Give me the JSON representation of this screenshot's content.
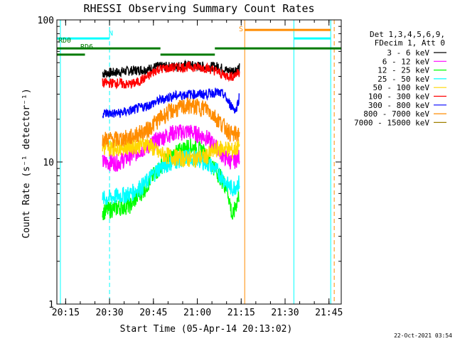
{
  "chart_data": {
    "type": "line",
    "title": "RHESSI Observing Summary Count Rates",
    "xlabel": "Start Time (05-Apr-14 20:13:02)",
    "ylabel": "Count Rate (s⁻¹ detector⁻¹)",
    "y_log": true,
    "xlim_minutes": [
      20.2,
      21.82
    ],
    "ylim": [
      1,
      100
    ],
    "x_ticks": [
      "20:15",
      "20:30",
      "20:45",
      "21:00",
      "21:15",
      "21:30",
      "21:45"
    ],
    "y_ticks": [
      "1",
      "10",
      "100"
    ],
    "timestamp": "22-Oct-2021 03:54",
    "legend_header": [
      "Det 1,3,4,5,6,9,",
      "FDecim 1, Att 0"
    ],
    "legend_placement": "right",
    "series": [
      {
        "name": "3 - 6 keV",
        "color": "#000000",
        "points": [
          [
            20.46,
            42
          ],
          [
            20.55,
            43
          ],
          [
            20.62,
            44
          ],
          [
            20.72,
            45
          ],
          [
            20.77,
            47
          ],
          [
            20.85,
            47
          ],
          [
            20.95,
            48
          ],
          [
            21.05,
            47
          ],
          [
            21.12,
            47
          ],
          [
            21.17,
            44
          ],
          [
            21.2,
            44
          ],
          [
            21.24,
            46
          ]
        ]
      },
      {
        "name": "6 - 12 keV",
        "color": "#ff00ff",
        "points": [
          [
            20.46,
            10
          ],
          [
            20.55,
            10
          ],
          [
            20.62,
            11
          ],
          [
            20.72,
            13
          ],
          [
            20.78,
            14.5
          ],
          [
            20.85,
            16
          ],
          [
            20.95,
            16.5
          ],
          [
            21.05,
            15
          ],
          [
            21.1,
            13
          ],
          [
            21.15,
            11
          ],
          [
            21.2,
            10
          ],
          [
            21.24,
            11
          ]
        ]
      },
      {
        "name": "12 - 25 keV",
        "color": "#00ff00",
        "points": [
          [
            20.46,
            4.5
          ],
          [
            20.55,
            4.8
          ],
          [
            20.62,
            5
          ],
          [
            20.7,
            6.5
          ],
          [
            20.78,
            9
          ],
          [
            20.85,
            11
          ],
          [
            20.95,
            13
          ],
          [
            21.03,
            12
          ],
          [
            21.1,
            9
          ],
          [
            21.17,
            6.5
          ],
          [
            21.2,
            4
          ],
          [
            21.24,
            6
          ]
        ]
      },
      {
        "name": "25 - 50 keV",
        "color": "#00ffff",
        "points": [
          [
            20.46,
            5.5
          ],
          [
            20.55,
            5.8
          ],
          [
            20.62,
            6
          ],
          [
            20.7,
            7
          ],
          [
            20.78,
            9
          ],
          [
            20.85,
            10
          ],
          [
            20.95,
            11
          ],
          [
            21.05,
            10
          ],
          [
            21.12,
            8.5
          ],
          [
            21.17,
            7
          ],
          [
            21.2,
            6.5
          ],
          [
            21.24,
            7.2
          ]
        ]
      },
      {
        "name": "50 - 100 keV",
        "color": "#ffd700",
        "points": [
          [
            20.46,
            12.5
          ],
          [
            20.55,
            12.8
          ],
          [
            20.62,
            13
          ],
          [
            20.72,
            13.5
          ],
          [
            20.78,
            11.5
          ],
          [
            20.85,
            11
          ],
          [
            20.95,
            10.5
          ],
          [
            21.05,
            11
          ],
          [
            21.12,
            12.5
          ],
          [
            21.17,
            12.5
          ],
          [
            21.2,
            12
          ],
          [
            21.24,
            13
          ]
        ]
      },
      {
        "name": "100 - 300 keV",
        "color": "#ff0000",
        "points": [
          [
            20.46,
            36
          ],
          [
            20.55,
            36
          ],
          [
            20.6,
            35
          ],
          [
            20.65,
            36
          ],
          [
            20.72,
            40
          ],
          [
            20.77,
            45
          ],
          [
            20.85,
            46
          ],
          [
            20.95,
            47
          ],
          [
            21.05,
            46
          ],
          [
            21.1,
            44
          ],
          [
            21.15,
            41
          ],
          [
            21.2,
            40
          ],
          [
            21.24,
            43
          ]
        ]
      },
      {
        "name": "300 - 800 keV",
        "color": "#0000ff",
        "points": [
          [
            20.46,
            22
          ],
          [
            20.55,
            22
          ],
          [
            20.62,
            23
          ],
          [
            20.72,
            25
          ],
          [
            20.78,
            27
          ],
          [
            20.85,
            29
          ],
          [
            20.95,
            30
          ],
          [
            21.05,
            30
          ],
          [
            21.1,
            31
          ],
          [
            21.15,
            30
          ],
          [
            21.18,
            26
          ],
          [
            21.22,
            23
          ],
          [
            21.24,
            29
          ]
        ]
      },
      {
        "name": "800 - 7000 keV",
        "color": "#ff8c00",
        "points": [
          [
            20.46,
            14.5
          ],
          [
            20.55,
            14.5
          ],
          [
            20.62,
            15
          ],
          [
            20.72,
            17
          ],
          [
            20.78,
            20
          ],
          [
            20.85,
            23
          ],
          [
            20.95,
            25
          ],
          [
            21.05,
            24
          ],
          [
            21.1,
            21
          ],
          [
            21.15,
            18
          ],
          [
            21.2,
            15.5
          ],
          [
            21.24,
            16
          ]
        ]
      },
      {
        "name": "7000 - 15000 keV",
        "color": "#a08000",
        "points": []
      }
    ],
    "bars": [
      {
        "label": "RD0",
        "color": "#007a00",
        "y": 63,
        "segments": [
          [
            20.2,
            20.79
          ],
          [
            21.1,
            21.82
          ]
        ]
      },
      {
        "label": "RD6",
        "color": "#007a00",
        "y": 57,
        "segments": [
          [
            20.2,
            20.36
          ],
          [
            20.79,
            21.1
          ]
        ]
      },
      {
        "label": "N",
        "color": "#00ffff",
        "y": 74,
        "segments": [
          [
            20.2,
            20.5
          ],
          [
            21.55,
            21.76
          ]
        ]
      },
      {
        "label": "S",
        "color": "#ff8c00",
        "y": 85,
        "segments": [
          [
            21.27,
            21.76
          ]
        ]
      }
    ],
    "vlines": [
      {
        "x": 20.22,
        "color": "#00ffff",
        "style": "solid"
      },
      {
        "x": 20.5,
        "color": "#00ffff",
        "style": "dashed"
      },
      {
        "x": 21.27,
        "color": "#ff8c00",
        "style": "solid"
      },
      {
        "x": 21.55,
        "color": "#00ffff",
        "style": "solid"
      },
      {
        "x": 21.76,
        "color": "#00ffff",
        "style": "solid"
      },
      {
        "x": 21.78,
        "color": "#ff8c00",
        "style": "dashed"
      }
    ]
  }
}
